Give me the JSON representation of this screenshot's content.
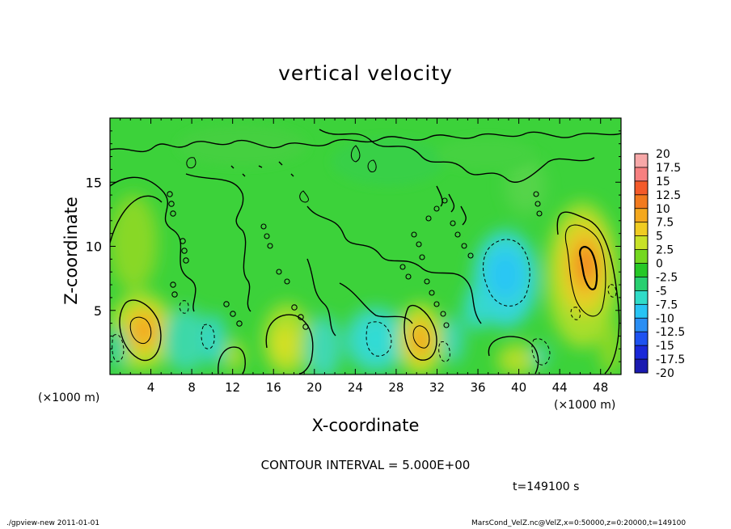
{
  "chart_data": {
    "type": "heatmap",
    "title": "vertical velocity",
    "xlabel": "X-coordinate",
    "ylabel": "Z-coordinate",
    "x_unit": "(×1000 m)",
    "y_unit": "(×1000 m)",
    "x_ticks": [
      4,
      8,
      12,
      16,
      20,
      24,
      28,
      32,
      36,
      40,
      44,
      48
    ],
    "y_ticks": [
      5,
      10,
      15
    ],
    "xlim": [
      0,
      50
    ],
    "ylim": [
      0,
      20
    ],
    "colorbar": {
      "labels": [
        "20",
        "17.5",
        "15",
        "12.5",
        "10",
        "7.5",
        "5",
        "2.5",
        "0",
        "-2.5",
        "-5",
        "-7.5",
        "-10",
        "-12.5",
        "-15",
        "-17.5",
        "-20"
      ],
      "colors": [
        "#f7a8a8",
        "#f78080",
        "#f45a2a",
        "#f27a1e",
        "#f4a81e",
        "#f0cc22",
        "#c8e228",
        "#74d820",
        "#26c826",
        "#28d070",
        "#30dcc8",
        "#28c4f4",
        "#2a8ef4",
        "#1e52f0",
        "#1a28d8",
        "#1a1ab0",
        "#6a18b0"
      ]
    },
    "features": [
      {
        "x": 3.2,
        "z": 3.4,
        "value": 9,
        "sign": "up"
      },
      {
        "x": 30.2,
        "z": 2.4,
        "value": 9,
        "sign": "up"
      },
      {
        "x": 46.3,
        "z": 8.3,
        "value": 12,
        "sign": "up"
      },
      {
        "x": 18.5,
        "z": 3.0,
        "value": 4,
        "sign": "up"
      },
      {
        "x": 39.0,
        "z": 7.5,
        "value": -8,
        "sign": "down"
      },
      {
        "x": 25.5,
        "z": 2.8,
        "value": -5,
        "sign": "down"
      },
      {
        "x": 9.5,
        "z": 3.0,
        "value": -4,
        "sign": "down"
      },
      {
        "x": 0.8,
        "z": 2.2,
        "value": -4,
        "sign": "down"
      }
    ]
  },
  "contour_interval": "CONTOUR INTERVAL = 5.000E+00",
  "time": "t=149100 s",
  "footer_left": "./gpview-new  2011-01-01",
  "footer_right": "MarsCond_VelZ.nc@VelZ,x=0:50000,z=0:20000,t=149100"
}
